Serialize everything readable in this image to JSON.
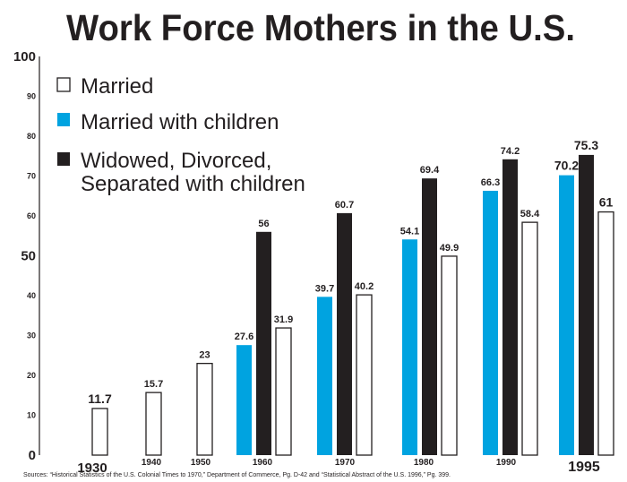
{
  "chart_data": {
    "type": "bar",
    "title": "Work Force Mothers in the U.S.",
    "xlabel": "",
    "ylabel": "",
    "ylim": [
      0,
      100
    ],
    "y_ticks": [
      "0",
      "10",
      "20",
      "30",
      "40",
      "50",
      "60",
      "70",
      "80",
      "90",
      "100"
    ],
    "categories": [
      "1930",
      "1940",
      "1950",
      "1960",
      "1970",
      "1980",
      "1990",
      "1995"
    ],
    "series": [
      {
        "name": "Married with children",
        "color": "#00a3e0",
        "values": [
          null,
          null,
          null,
          27.6,
          39.7,
          54.1,
          66.3,
          70.2
        ]
      },
      {
        "name": "Widowed, Divorced, Separated with children",
        "color": "#231f20",
        "values": [
          null,
          null,
          null,
          56,
          60.7,
          69.4,
          74.2,
          75.3
        ]
      },
      {
        "name": "Married",
        "color": "#ffffff",
        "values": [
          11.7,
          15.7,
          23,
          31.9,
          40.2,
          49.9,
          58.4,
          61
        ]
      }
    ],
    "value_labels": [
      [
        "",
        "",
        "",
        "27.6",
        "39.7",
        "54.1",
        "66.3",
        "70.2"
      ],
      [
        "",
        "",
        "",
        "56",
        "60.7",
        "69.4",
        "74.2",
        "75.3"
      ],
      [
        "11.7",
        "15.7",
        "23",
        "31.9",
        "40.2",
        "49.9",
        "58.4",
        "61"
      ]
    ],
    "legend": {
      "placement": "top-left",
      "entries": [
        "Married",
        "Married with children",
        "Widowed, Divorced,",
        "Separated with children"
      ]
    },
    "grid": false
  },
  "source_note": "Sources: “Historical Statistics of the U.S. Colonial Times to 1970,” Department of Commerce, Pg. D-42 and “Statistical Abstract of the U.S. 1996,” Pg. 399."
}
